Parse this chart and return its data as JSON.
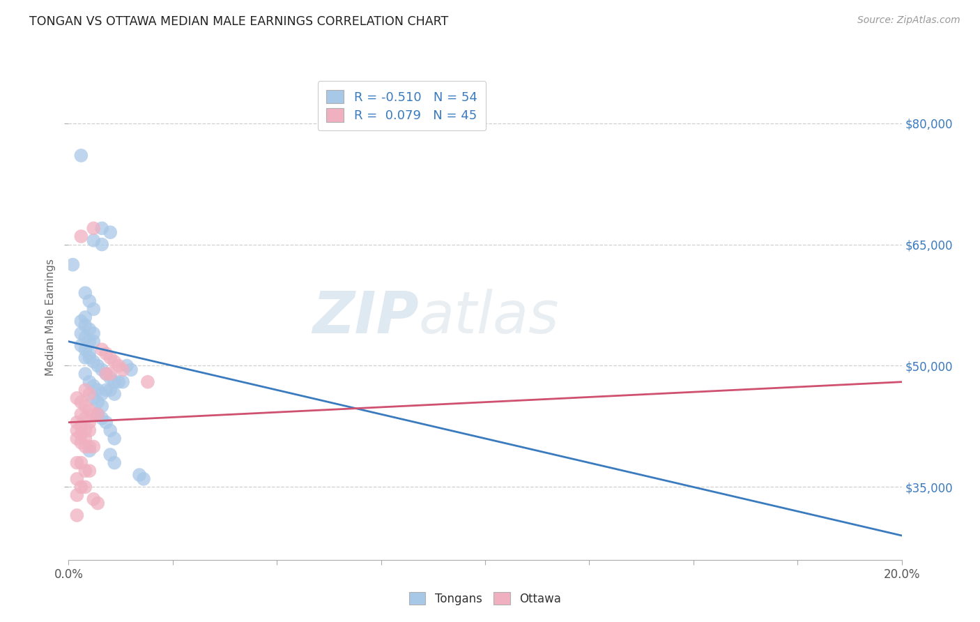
{
  "title": "TONGAN VS OTTAWA MEDIAN MALE EARNINGS CORRELATION CHART",
  "source": "Source: ZipAtlas.com",
  "ylabel": "Median Male Earnings",
  "watermark": "ZIPatlas",
  "ytick_labels": [
    "$35,000",
    "$50,000",
    "$65,000",
    "$80,000"
  ],
  "ytick_values": [
    35000,
    50000,
    65000,
    80000
  ],
  "ylim": [
    26000,
    86000
  ],
  "xlim": [
    0.0,
    0.2
  ],
  "legend_blue_r": "R = -0.510",
  "legend_blue_n": "N = 54",
  "legend_pink_r": "R =  0.079",
  "legend_pink_n": "N = 45",
  "blue_color": "#a8c8e8",
  "pink_color": "#f0b0c0",
  "line_blue_color": "#3a7abf",
  "line_pink_color": "#d05070",
  "blue_scatter": [
    [
      0.003,
      76000
    ],
    [
      0.01,
      66500
    ],
    [
      0.008,
      67000
    ],
    [
      0.006,
      65500
    ],
    [
      0.008,
      65000
    ],
    [
      0.001,
      62500
    ],
    [
      0.004,
      59000
    ],
    [
      0.005,
      58000
    ],
    [
      0.006,
      57000
    ],
    [
      0.004,
      56000
    ],
    [
      0.003,
      55500
    ],
    [
      0.004,
      55000
    ],
    [
      0.005,
      54500
    ],
    [
      0.006,
      54000
    ],
    [
      0.003,
      54000
    ],
    [
      0.004,
      53500
    ],
    [
      0.005,
      53000
    ],
    [
      0.006,
      53000
    ],
    [
      0.003,
      52500
    ],
    [
      0.004,
      52000
    ],
    [
      0.005,
      51500
    ],
    [
      0.004,
      51000
    ],
    [
      0.005,
      51000
    ],
    [
      0.006,
      50500
    ],
    [
      0.007,
      50000
    ],
    [
      0.008,
      49500
    ],
    [
      0.009,
      49000
    ],
    [
      0.01,
      48500
    ],
    [
      0.011,
      48000
    ],
    [
      0.012,
      48000
    ],
    [
      0.013,
      48000
    ],
    [
      0.004,
      49000
    ],
    [
      0.005,
      48000
    ],
    [
      0.006,
      47500
    ],
    [
      0.007,
      47000
    ],
    [
      0.008,
      46500
    ],
    [
      0.009,
      47000
    ],
    [
      0.01,
      47000
    ],
    [
      0.011,
      46500
    ],
    [
      0.006,
      46000
    ],
    [
      0.007,
      45500
    ],
    [
      0.008,
      45000
    ],
    [
      0.014,
      50000
    ],
    [
      0.015,
      49500
    ],
    [
      0.007,
      44000
    ],
    [
      0.008,
      43500
    ],
    [
      0.009,
      43000
    ],
    [
      0.01,
      42000
    ],
    [
      0.011,
      41000
    ],
    [
      0.005,
      39500
    ],
    [
      0.01,
      39000
    ],
    [
      0.011,
      38000
    ],
    [
      0.017,
      36500
    ],
    [
      0.018,
      36000
    ]
  ],
  "pink_scatter": [
    [
      0.006,
      67000
    ],
    [
      0.008,
      52000
    ],
    [
      0.009,
      51500
    ],
    [
      0.01,
      51000
    ],
    [
      0.011,
      50500
    ],
    [
      0.012,
      50000
    ],
    [
      0.013,
      49500
    ],
    [
      0.009,
      49000
    ],
    [
      0.01,
      49000
    ],
    [
      0.003,
      66000
    ],
    [
      0.004,
      47000
    ],
    [
      0.005,
      46500
    ],
    [
      0.002,
      46000
    ],
    [
      0.003,
      45500
    ],
    [
      0.004,
      45000
    ],
    [
      0.005,
      44500
    ],
    [
      0.006,
      44000
    ],
    [
      0.003,
      44000
    ],
    [
      0.004,
      43500
    ],
    [
      0.005,
      43000
    ],
    [
      0.002,
      43000
    ],
    [
      0.003,
      42500
    ],
    [
      0.004,
      42000
    ],
    [
      0.005,
      42000
    ],
    [
      0.002,
      42000
    ],
    [
      0.003,
      41500
    ],
    [
      0.004,
      41000
    ],
    [
      0.002,
      41000
    ],
    [
      0.003,
      40500
    ],
    [
      0.004,
      40000
    ],
    [
      0.005,
      40000
    ],
    [
      0.006,
      40000
    ],
    [
      0.007,
      44000
    ],
    [
      0.002,
      38000
    ],
    [
      0.003,
      38000
    ],
    [
      0.004,
      37000
    ],
    [
      0.005,
      37000
    ],
    [
      0.002,
      36000
    ],
    [
      0.003,
      35000
    ],
    [
      0.004,
      35000
    ],
    [
      0.002,
      34000
    ],
    [
      0.006,
      33500
    ],
    [
      0.007,
      33000
    ],
    [
      0.002,
      31500
    ],
    [
      0.019,
      48000
    ]
  ],
  "blue_line_x": [
    0.0,
    0.2
  ],
  "blue_line_y": [
    53000,
    29000
  ],
  "pink_line_x": [
    0.0,
    0.2
  ],
  "pink_line_y": [
    43000,
    48000
  ],
  "grid_color": "#d0d0d0",
  "grid_linestyle": "--",
  "background_color": "#ffffff",
  "xtick_positions": [
    0.0,
    0.025,
    0.05,
    0.075,
    0.1,
    0.125,
    0.15,
    0.175,
    0.2
  ]
}
